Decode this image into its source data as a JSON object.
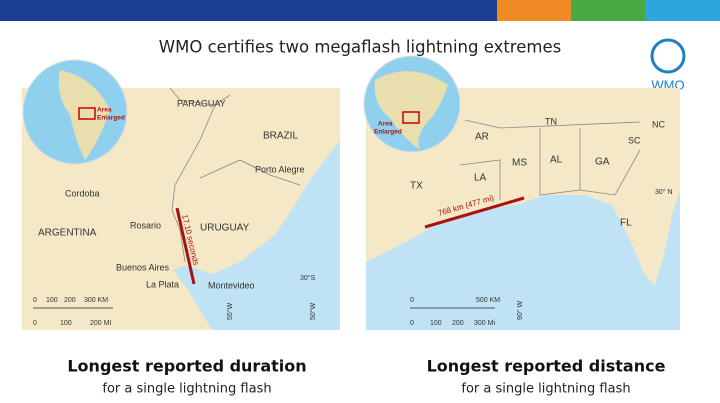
{
  "header": {
    "title": "WMO certifies two megaflash lightning extremes",
    "logo": "WMO"
  },
  "panels": [
    {
      "inset_label": [
        "Area",
        "Enlarged"
      ],
      "labels": [
        "PARAGUAY",
        "BRAZIL",
        "Porto Alegre",
        "Cordoba",
        "ARGENTINA",
        "Rosario",
        "URUGUAY",
        "Buenos Aires",
        "La Plata",
        "Montevideo",
        "30°S",
        "55°W",
        "50°W"
      ],
      "measurement": "17.10 seconds",
      "scale": {
        "km": [
          "0",
          "100",
          "200",
          "300 KM"
        ],
        "mi": [
          "0",
          "100",
          "200 MI"
        ]
      },
      "caption": {
        "title": "Longest reported duration",
        "subtitle": "for a single lightning flash"
      }
    },
    {
      "inset_label": [
        "Area",
        "Enlarged"
      ],
      "labels": [
        "AR",
        "TN",
        "NC",
        "SC",
        "MS",
        "AL",
        "GA",
        "LA",
        "TX",
        "30° N",
        "FL",
        "90° W"
      ],
      "measurement": "768 km (477 mi)",
      "scale": {
        "km": [
          "0",
          "500 KM"
        ],
        "mi": [
          "0",
          "100",
          "200",
          "300 Mi"
        ]
      },
      "caption": {
        "title": "Longest reported distance",
        "subtitle": "for a single lightning flash"
      }
    }
  ]
}
